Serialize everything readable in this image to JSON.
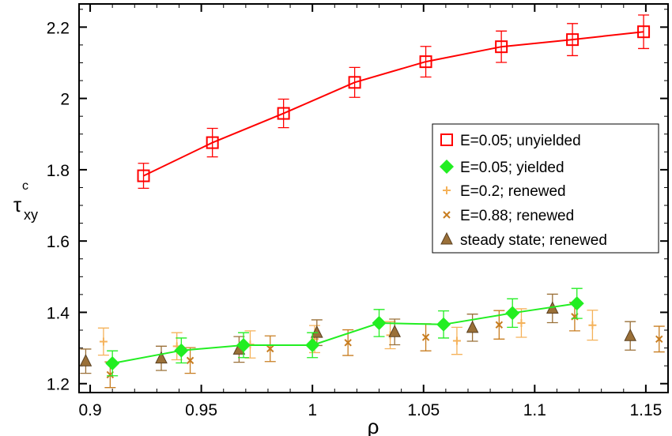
{
  "chart_data": {
    "type": "scatter",
    "title": "",
    "xlabel": "ρ",
    "ylabel": {
      "main": "τ",
      "sup": "c",
      "sub": "xy"
    },
    "xlim": [
      0.895,
      1.16
    ],
    "ylim": [
      1.175,
      2.265
    ],
    "xticks": [
      0.9,
      0.95,
      1,
      1.05,
      1.1,
      1.15
    ],
    "xtick_labels": [
      "0.9",
      "0.95",
      "1",
      "1.05",
      "1.1",
      "1.15"
    ],
    "yticks": [
      1.2,
      1.4,
      1.6,
      1.8,
      2.0,
      2.2
    ],
    "ytick_labels": [
      "1.2",
      "1.4",
      "1.6",
      "1.8",
      "2",
      "2.2"
    ],
    "legend_position": "right",
    "series": [
      {
        "name": "E=0.05; unyielded",
        "marker": "square-open",
        "color": "#ff0000",
        "line": true,
        "points": [
          {
            "x": 0.924,
            "y": 1.783,
            "err": 0.035
          },
          {
            "x": 0.955,
            "y": 1.876,
            "err": 0.04
          },
          {
            "x": 0.987,
            "y": 1.958,
            "err": 0.04
          },
          {
            "x": 1.019,
            "y": 2.045,
            "err": 0.042
          },
          {
            "x": 1.051,
            "y": 2.103,
            "err": 0.043
          },
          {
            "x": 1.085,
            "y": 2.145,
            "err": 0.044
          },
          {
            "x": 1.117,
            "y": 2.165,
            "err": 0.045
          },
          {
            "x": 1.149,
            "y": 2.187,
            "err": 0.047
          }
        ]
      },
      {
        "name": "E=0.05; yielded",
        "marker": "diamond",
        "color": "#22ee22",
        "line": true,
        "points": [
          {
            "x": 0.91,
            "y": 1.257,
            "err": 0.035
          },
          {
            "x": 0.941,
            "y": 1.293,
            "err": 0.035
          },
          {
            "x": 0.969,
            "y": 1.308,
            "err": 0.035
          },
          {
            "x": 1.0,
            "y": 1.308,
            "err": 0.035
          },
          {
            "x": 1.03,
            "y": 1.37,
            "err": 0.038
          },
          {
            "x": 1.059,
            "y": 1.366,
            "err": 0.038
          },
          {
            "x": 1.09,
            "y": 1.398,
            "err": 0.04
          },
          {
            "x": 1.119,
            "y": 1.425,
            "err": 0.042
          }
        ]
      },
      {
        "name": "E=0.2; renewed",
        "marker": "plus",
        "color": "#f5b25a",
        "line": false,
        "points": [
          {
            "x": 0.906,
            "y": 1.318,
            "err": 0.038
          },
          {
            "x": 0.939,
            "y": 1.305,
            "err": 0.038
          },
          {
            "x": 0.972,
            "y": 1.31,
            "err": 0.038
          },
          {
            "x": 1.001,
            "y": 1.325,
            "err": 0.038
          },
          {
            "x": 1.035,
            "y": 1.336,
            "err": 0.038
          },
          {
            "x": 1.065,
            "y": 1.32,
            "err": 0.038
          },
          {
            "x": 1.094,
            "y": 1.37,
            "err": 0.04
          },
          {
            "x": 1.126,
            "y": 1.364,
            "err": 0.042
          }
        ]
      },
      {
        "name": "E=0.88; renewed",
        "marker": "x",
        "color": "#c87d20",
        "line": false,
        "points": [
          {
            "x": 0.909,
            "y": 1.225,
            "err": 0.036
          },
          {
            "x": 0.945,
            "y": 1.265,
            "err": 0.036
          },
          {
            "x": 0.981,
            "y": 1.298,
            "err": 0.036
          },
          {
            "x": 1.016,
            "y": 1.315,
            "err": 0.036
          },
          {
            "x": 1.051,
            "y": 1.33,
            "err": 0.038
          },
          {
            "x": 1.084,
            "y": 1.365,
            "err": 0.04
          },
          {
            "x": 1.118,
            "y": 1.388,
            "err": 0.04
          },
          {
            "x": 1.156,
            "y": 1.325,
            "err": 0.036
          }
        ]
      },
      {
        "name": "steady state; renewed",
        "marker": "triangle",
        "color": "#9a7038",
        "line": false,
        "points": [
          {
            "x": 0.898,
            "y": 1.263,
            "err": 0.034
          },
          {
            "x": 0.932,
            "y": 1.271,
            "err": 0.034
          },
          {
            "x": 0.967,
            "y": 1.296,
            "err": 0.036
          },
          {
            "x": 1.002,
            "y": 1.343,
            "err": 0.036
          },
          {
            "x": 1.037,
            "y": 1.345,
            "err": 0.036
          },
          {
            "x": 1.072,
            "y": 1.357,
            "err": 0.038
          },
          {
            "x": 1.108,
            "y": 1.411,
            "err": 0.04
          },
          {
            "x": 1.143,
            "y": 1.334,
            "err": 0.04
          }
        ]
      }
    ]
  }
}
